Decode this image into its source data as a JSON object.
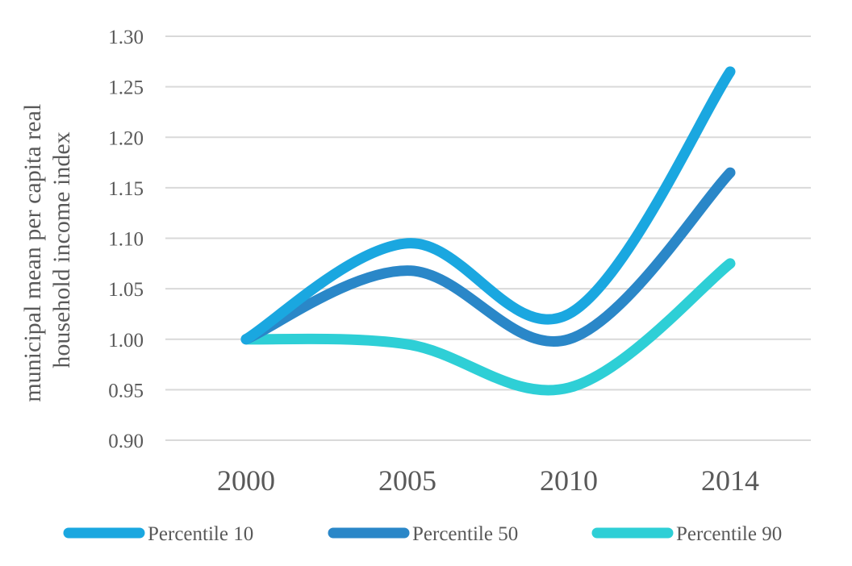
{
  "chart_data": {
    "type": "line",
    "categories": [
      "2000",
      "2005",
      "2010",
      "2014"
    ],
    "ylabel_lines": [
      "municipal mean per capita real",
      "household income index"
    ],
    "ylim": [
      0.9,
      1.3
    ],
    "yticks": [
      "0.90",
      "0.95",
      "1.00",
      "1.05",
      "1.10",
      "1.15",
      "1.20",
      "1.25",
      "1.30"
    ],
    "grid": true,
    "legend_position": "bottom",
    "smooth": true,
    "series": [
      {
        "name": "Percentile 10",
        "color": "#1aa7e0",
        "values": [
          1.0,
          1.095,
          1.025,
          1.265
        ]
      },
      {
        "name": "Percentile 50",
        "color": "#2a87c8",
        "values": [
          1.0,
          1.068,
          1.0,
          1.165
        ]
      },
      {
        "name": "Percentile 90",
        "color": "#2ecfd6",
        "values": [
          1.0,
          0.995,
          0.952,
          1.075
        ]
      }
    ]
  }
}
